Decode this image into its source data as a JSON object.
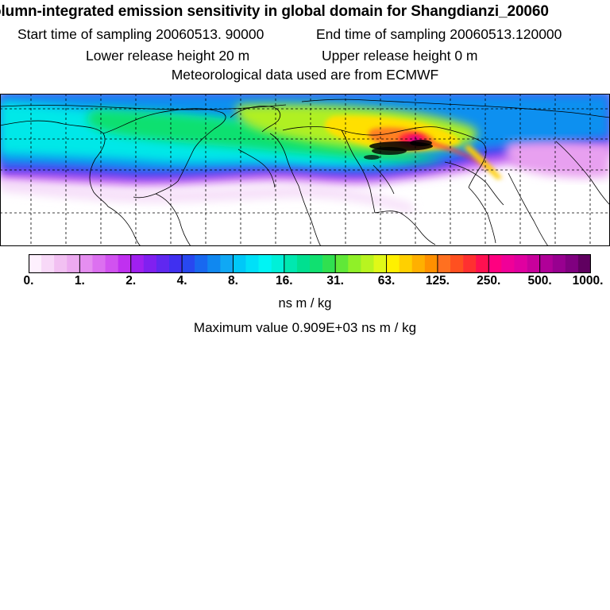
{
  "header": {
    "title": "olumn-integrated emission sensitivity in global domain for Shangdianzi_20060",
    "start_sampling": "Start time of sampling 20060513. 90000",
    "end_sampling": "End time of sampling 20060513.120000",
    "lower_release": "Lower release height   20 m",
    "upper_release": "Upper release height    0 m",
    "met_data": "Meteorological data used are from ECMWF"
  },
  "colorbar": {
    "tick_labels": [
      "0.",
      "1.",
      "2.",
      "4.",
      "8.",
      "16.",
      "31.",
      "63.",
      "125.",
      "250.",
      "500.",
      "1000."
    ],
    "unit": "ns m / kg",
    "colors": [
      "#fdf0fd",
      "#f8d9f8",
      "#f2c0f2",
      "#ecaaf0",
      "#e58ef0",
      "#dc70f0",
      "#d152f0",
      "#c030f0",
      "#a020f0",
      "#8020f0",
      "#6028f0",
      "#4030f0",
      "#2848f0",
      "#1868f0",
      "#1088f0",
      "#10a8f4",
      "#00c8f8",
      "#00e0f8",
      "#00f4f4",
      "#00f0d8",
      "#00e8b0",
      "#00e090",
      "#10e070",
      "#30e050",
      "#60e838",
      "#90f028",
      "#b8f420",
      "#e0f818",
      "#fff000",
      "#ffd000",
      "#ffb000",
      "#ff9000",
      "#ff7020",
      "#ff5020",
      "#ff3030",
      "#ff1050",
      "#ff0080",
      "#f00098",
      "#e000a0",
      "#c8009c",
      "#b00098",
      "#980090",
      "#800080",
      "#600060"
    ]
  },
  "map": {
    "projection": "global lat-lon"
  },
  "max_value_text": "Maximum value  0.909E+03 ns m / kg"
}
